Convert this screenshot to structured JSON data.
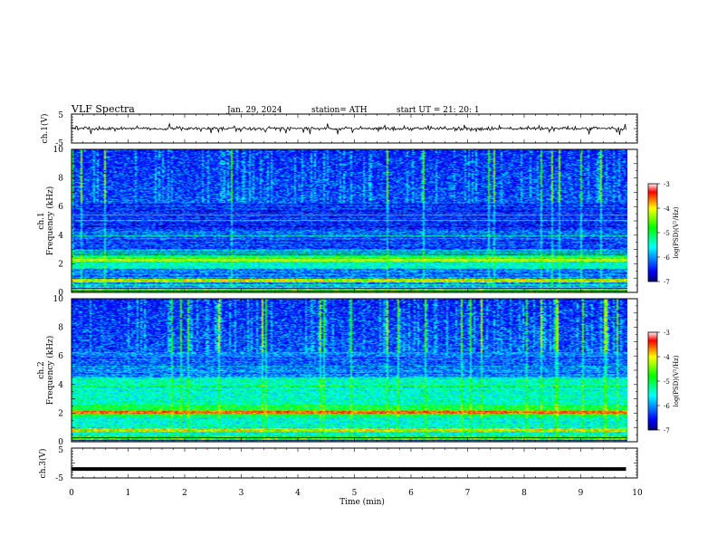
{
  "header": {
    "title": "VLF  Spectra",
    "date": "Jan. 29, 2024",
    "station": "station= ATH",
    "start": "start  UT  =    21: 20: 1"
  },
  "chart_data": [
    {
      "type": "line",
      "name": "ch1-waveform",
      "ylabel": "ch.1(V)",
      "ylim": [
        -5,
        5
      ],
      "yticks": [
        "5",
        "-5"
      ],
      "xlim": [
        0,
        10
      ],
      "mean": 0,
      "noise_amplitude": 0.7,
      "spike_amplitude": 2.0,
      "end_time": 9.8
    },
    {
      "type": "heatmap",
      "name": "ch1-spectrogram",
      "ylabel_top": "ch.1",
      "ylabel": "Frequency  (kHz)",
      "ylim": [
        0,
        10
      ],
      "yticks": [
        "0",
        "2",
        "4",
        "6",
        "8",
        "10"
      ],
      "xlim": [
        0,
        10
      ],
      "end_time": 9.8,
      "colorbar": {
        "label": "log(PSD)(V²/Hz)",
        "range": [
          -7,
          -3
        ],
        "ticks": [
          "-3",
          "-4",
          "-5",
          "-6",
          "-7"
        ]
      }
    },
    {
      "type": "heatmap",
      "name": "ch2-spectrogram",
      "ylabel_top": "ch.2",
      "ylabel": "Frequency  (kHz)",
      "ylim": [
        0,
        10
      ],
      "yticks": [
        "0",
        "2",
        "4",
        "6",
        "8",
        "10"
      ],
      "xlim": [
        0,
        10
      ],
      "end_time": 9.8,
      "colorbar": {
        "label": "log(PSD)(V²/Hz)",
        "range": [
          -7,
          -3
        ],
        "ticks": [
          "-3",
          "-4",
          "-5",
          "-6",
          "-7"
        ]
      }
    },
    {
      "type": "line",
      "name": "ch3-waveform",
      "ylabel": "ch.3(V)",
      "ylim": [
        -5,
        5
      ],
      "yticks": [
        "5",
        "-5"
      ],
      "xlim": [
        0,
        10
      ],
      "mean": -2,
      "end_time": 9.8,
      "xlabel": "Time  (min)",
      "xticks": [
        "0",
        "1",
        "2",
        "3",
        "4",
        "5",
        "6",
        "7",
        "8",
        "9",
        "10"
      ]
    }
  ]
}
